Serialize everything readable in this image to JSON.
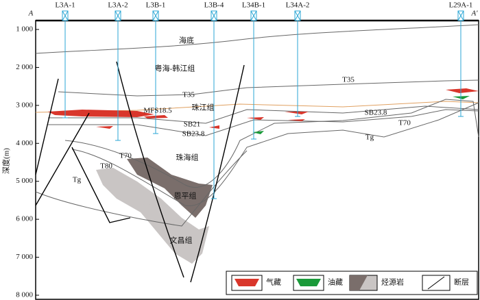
{
  "section": {
    "start": "A",
    "end": "A'"
  },
  "axis": {
    "title": "深度(m)",
    "ticks": [
      {
        "value": 1000,
        "label": "1 000"
      },
      {
        "value": 2000,
        "label": "2 000"
      },
      {
        "value": 3000,
        "label": "3 000"
      },
      {
        "value": 4000,
        "label": "4 000"
      },
      {
        "value": 5000,
        "label": "5 000"
      },
      {
        "value": 6000,
        "label": "6 000"
      },
      {
        "value": 7000,
        "label": "7 000"
      },
      {
        "value": 8000,
        "label": "8 000"
      }
    ]
  },
  "wells": [
    "L3A-1",
    "L3A-2",
    "L3B-1",
    "L3B-4",
    "L34B-1",
    "L34A-2",
    "L29A-1"
  ],
  "labels": [
    "海底",
    "粤海-韩江组",
    "T35",
    "MFS18.5",
    "珠江组",
    "SB21",
    "SB23.8",
    "珠海组",
    "T70",
    "T80",
    "Tg",
    "恩平组",
    "文昌组",
    "T35",
    "SB23.8",
    "T70",
    "Tg"
  ],
  "legend": [
    "气藏",
    "油藏",
    "烃源岩",
    "断层"
  ]
}
